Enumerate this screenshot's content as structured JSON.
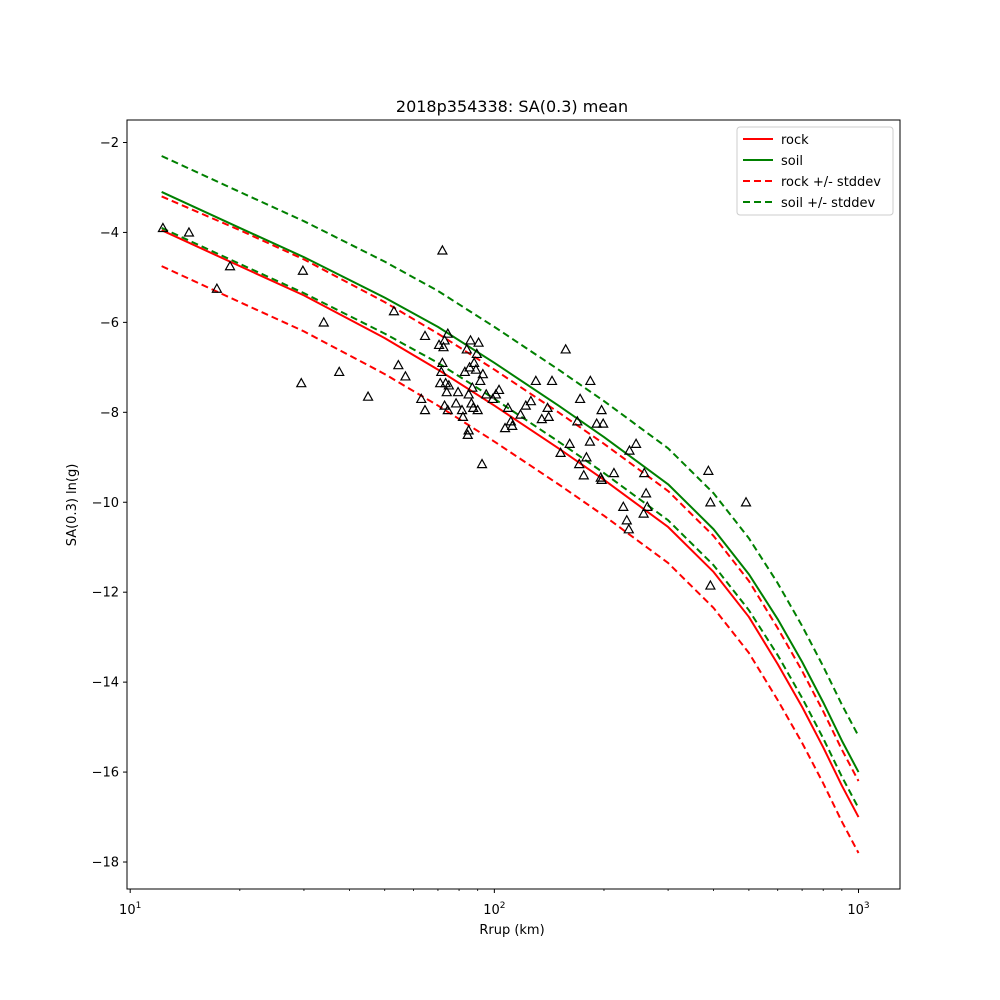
{
  "chart_data": {
    "type": "line",
    "title": "2018p354338: SA(0.3) mean",
    "xlabel": "Rrup (km)",
    "ylabel": "SA(0.3) ln(g)",
    "x_scale": "log",
    "xlim": [
      9.8,
      1300
    ],
    "ylim": [
      -18.6,
      -1.5
    ],
    "x_ticks": [
      {
        "value": 10,
        "base": "10",
        "exp": "1"
      },
      {
        "value": 100,
        "base": "10",
        "exp": "2"
      },
      {
        "value": 1000,
        "base": "10",
        "exp": "3"
      }
    ],
    "y_ticks": [
      {
        "value": -2,
        "label": "−2"
      },
      {
        "value": -4,
        "label": "−4"
      },
      {
        "value": -6,
        "label": "−6"
      },
      {
        "value": -8,
        "label": "−8"
      },
      {
        "value": -10,
        "label": "−10"
      },
      {
        "value": -12,
        "label": "−12"
      },
      {
        "value": -14,
        "label": "−14"
      },
      {
        "value": -16,
        "label": "−16"
      },
      {
        "value": -18,
        "label": "−18"
      }
    ],
    "grid": false,
    "legend_position": "top-right",
    "series": [
      {
        "name": "rock",
        "color": "#ff0000",
        "style": "solid",
        "x": [
          12.2,
          20,
          30,
          50,
          70,
          100,
          150,
          200,
          300,
          400,
          500,
          600,
          700,
          800,
          900,
          1000
        ],
        "y": [
          -3.95,
          -4.75,
          -5.4,
          -6.35,
          -7.05,
          -7.85,
          -8.8,
          -9.5,
          -10.55,
          -11.55,
          -12.55,
          -13.6,
          -14.55,
          -15.45,
          -16.3,
          -17.0
        ]
      },
      {
        "name": "soil",
        "color": "#008000",
        "style": "solid",
        "x": [
          12.2,
          20,
          30,
          50,
          70,
          100,
          150,
          200,
          300,
          400,
          500,
          600,
          700,
          800,
          900,
          1000
        ],
        "y": [
          -3.1,
          -3.9,
          -4.55,
          -5.45,
          -6.1,
          -6.9,
          -7.85,
          -8.55,
          -9.6,
          -10.6,
          -11.6,
          -12.6,
          -13.55,
          -14.45,
          -15.3,
          -16.0
        ]
      },
      {
        "name": "rock +/- stddev",
        "color": "#ff0000",
        "style": "dashed",
        "x": [
          12.2,
          20,
          30,
          50,
          70,
          100,
          150,
          200,
          300,
          400,
          500,
          600,
          700,
          800,
          900,
          1000
        ],
        "y": [
          -3.2,
          -3.95,
          -4.6,
          -5.55,
          -6.25,
          -7.05,
          -8.0,
          -8.7,
          -9.75,
          -10.75,
          -11.75,
          -12.8,
          -13.75,
          -14.65,
          -15.5,
          -16.2
        ]
      },
      {
        "name": "",
        "color": "#ff0000",
        "style": "dashed",
        "x": [
          12.2,
          20,
          30,
          50,
          70,
          100,
          150,
          200,
          300,
          400,
          500,
          600,
          700,
          800,
          900,
          1000
        ],
        "y": [
          -4.75,
          -5.55,
          -6.2,
          -7.15,
          -7.85,
          -8.65,
          -9.6,
          -10.3,
          -11.35,
          -12.35,
          -13.35,
          -14.4,
          -15.35,
          -16.25,
          -17.1,
          -17.8
        ]
      },
      {
        "name": "soil +/- stddev",
        "color": "#008000",
        "style": "dashed",
        "x": [
          12.2,
          20,
          30,
          50,
          70,
          100,
          150,
          200,
          300,
          400,
          500,
          600,
          700,
          800,
          900,
          1000
        ],
        "y": [
          -2.3,
          -3.1,
          -3.75,
          -4.65,
          -5.3,
          -6.1,
          -7.05,
          -7.75,
          -8.8,
          -9.8,
          -10.8,
          -11.8,
          -12.75,
          -13.65,
          -14.5,
          -15.2
        ]
      },
      {
        "name": "",
        "color": "#008000",
        "style": "dashed",
        "x": [
          12.2,
          20,
          30,
          50,
          70,
          100,
          150,
          200,
          300,
          400,
          500,
          600,
          700,
          800,
          900,
          1000
        ],
        "y": [
          -3.9,
          -4.7,
          -5.35,
          -6.25,
          -6.9,
          -7.7,
          -8.65,
          -9.35,
          -10.4,
          -11.4,
          -12.4,
          -13.4,
          -14.35,
          -15.25,
          -16.1,
          -16.8
        ]
      }
    ],
    "observations": {
      "marker": "triangle",
      "color": "#000000",
      "points": [
        [
          12.3,
          -3.9
        ],
        [
          14.5,
          -4.0
        ],
        [
          17.3,
          -5.25
        ],
        [
          18.8,
          -4.75
        ],
        [
          29.5,
          -7.35
        ],
        [
          29.8,
          -4.85
        ],
        [
          34.0,
          -6.0
        ],
        [
          37.5,
          -7.1
        ],
        [
          45.0,
          -7.65
        ],
        [
          53.0,
          -5.75
        ],
        [
          54.5,
          -6.95
        ],
        [
          57.0,
          -7.2
        ],
        [
          63.0,
          -7.7
        ],
        [
          64.5,
          -7.95
        ],
        [
          64.5,
          -6.3
        ],
        [
          70.5,
          -6.5
        ],
        [
          71.0,
          -7.35
        ],
        [
          71.5,
          -7.1
        ],
        [
          72.0,
          -4.4
        ],
        [
          72.0,
          -6.9
        ],
        [
          72.5,
          -6.55
        ],
        [
          73.0,
          -6.4
        ],
        [
          73.5,
          -7.35
        ],
        [
          73.0,
          -7.85
        ],
        [
          74.0,
          -7.55
        ],
        [
          74.5,
          -7.95
        ],
        [
          74.5,
          -6.25
        ],
        [
          75.0,
          -7.4
        ],
        [
          78.5,
          -7.8
        ],
        [
          79.5,
          -7.55
        ],
        [
          81.5,
          -7.95
        ],
        [
          82.0,
          -8.1
        ],
        [
          83.0,
          -7.1
        ],
        [
          84.0,
          -6.6
        ],
        [
          84.5,
          -8.5
        ],
        [
          85.0,
          -8.4
        ],
        [
          85.0,
          -7.6
        ],
        [
          85.5,
          -7.0
        ],
        [
          86.0,
          -6.4
        ],
        [
          86.5,
          -7.8
        ],
        [
          87.0,
          -7.45
        ],
        [
          87.5,
          -7.9
        ],
        [
          88.0,
          -6.9
        ],
        [
          89.0,
          -7.05
        ],
        [
          89.5,
          -6.7
        ],
        [
          90.0,
          -7.95
        ],
        [
          90.5,
          -6.45
        ],
        [
          91.5,
          -7.3
        ],
        [
          92.5,
          -9.15
        ],
        [
          93.0,
          -7.15
        ],
        [
          95.0,
          -7.6
        ],
        [
          99.0,
          -7.7
        ],
        [
          101.0,
          -7.6
        ],
        [
          103.0,
          -7.5
        ],
        [
          107.0,
          -8.35
        ],
        [
          109.0,
          -7.9
        ],
        [
          111.0,
          -8.2
        ],
        [
          112.0,
          -8.3
        ],
        [
          118.0,
          -8.05
        ],
        [
          122.0,
          -7.85
        ],
        [
          126.0,
          -7.75
        ],
        [
          130.0,
          -7.3
        ],
        [
          135.0,
          -8.15
        ],
        [
          140.0,
          -7.9
        ],
        [
          141.0,
          -8.1
        ],
        [
          144.0,
          -7.3
        ],
        [
          152.0,
          -8.9
        ],
        [
          157.0,
          -6.6
        ],
        [
          161.0,
          -8.7
        ],
        [
          169.0,
          -8.2
        ],
        [
          171.0,
          -9.15
        ],
        [
          172.0,
          -7.7
        ],
        [
          176.0,
          -9.4
        ],
        [
          179.0,
          -9.0
        ],
        [
          183.0,
          -8.65
        ],
        [
          183.5,
          -7.3
        ],
        [
          191.0,
          -8.25
        ],
        [
          196.0,
          -9.45
        ],
        [
          197.0,
          -9.5
        ],
        [
          197.0,
          -7.95
        ],
        [
          199.0,
          -8.25
        ],
        [
          213.0,
          -9.35
        ],
        [
          226.0,
          -10.1
        ],
        [
          231.0,
          -10.4
        ],
        [
          234.0,
          -10.6
        ],
        [
          235.0,
          -8.85
        ],
        [
          245.0,
          -8.7
        ],
        [
          257.0,
          -10.25
        ],
        [
          258.0,
          -9.35
        ],
        [
          261.0,
          -9.8
        ],
        [
          263.0,
          -10.1
        ],
        [
          387.0,
          -9.3
        ],
        [
          392.0,
          -10.0
        ],
        [
          392.0,
          -11.85
        ],
        [
          491.0,
          -10.0
        ]
      ]
    }
  }
}
